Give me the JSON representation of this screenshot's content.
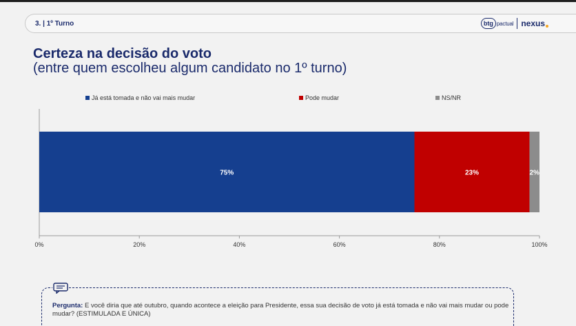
{
  "header": {
    "section": "3. | 1º Turno",
    "logo_btg_mark": "btg",
    "logo_btg_sub": "pactual",
    "logo_nexus": "nexus"
  },
  "title": "Certeza na decisão do voto",
  "subtitle": "(entre quem escolheu algum candidato no 1º turno)",
  "chart_data": {
    "type": "bar",
    "orientation": "horizontal-stacked",
    "categories": [
      ""
    ],
    "series": [
      {
        "name": "Já está tomada e não vai mais mudar",
        "values": [
          75
        ],
        "label": "75%",
        "color": "#153f8f"
      },
      {
        "name": "Pode mudar",
        "values": [
          23
        ],
        "label": "23%",
        "color": "#c00000"
      },
      {
        "name": "NS/NR",
        "values": [
          2
        ],
        "label": "2%",
        "color": "#8c8c8c"
      }
    ],
    "xlim": [
      0,
      100
    ],
    "xticks": [
      0,
      20,
      40,
      60,
      80,
      100
    ],
    "xtick_labels": [
      "0%",
      "20%",
      "40%",
      "60%",
      "80%",
      "100%"
    ],
    "legend_position": "top",
    "grid": false
  },
  "note": {
    "label": "Pergunta:",
    "text": " E você diria que até outubro, quando acontece a eleição para Presidente, essa sua decisão de voto já está tomada e não vai mais mudar ou pode mudar? (ESTIMULADA E ÚNICA)"
  }
}
